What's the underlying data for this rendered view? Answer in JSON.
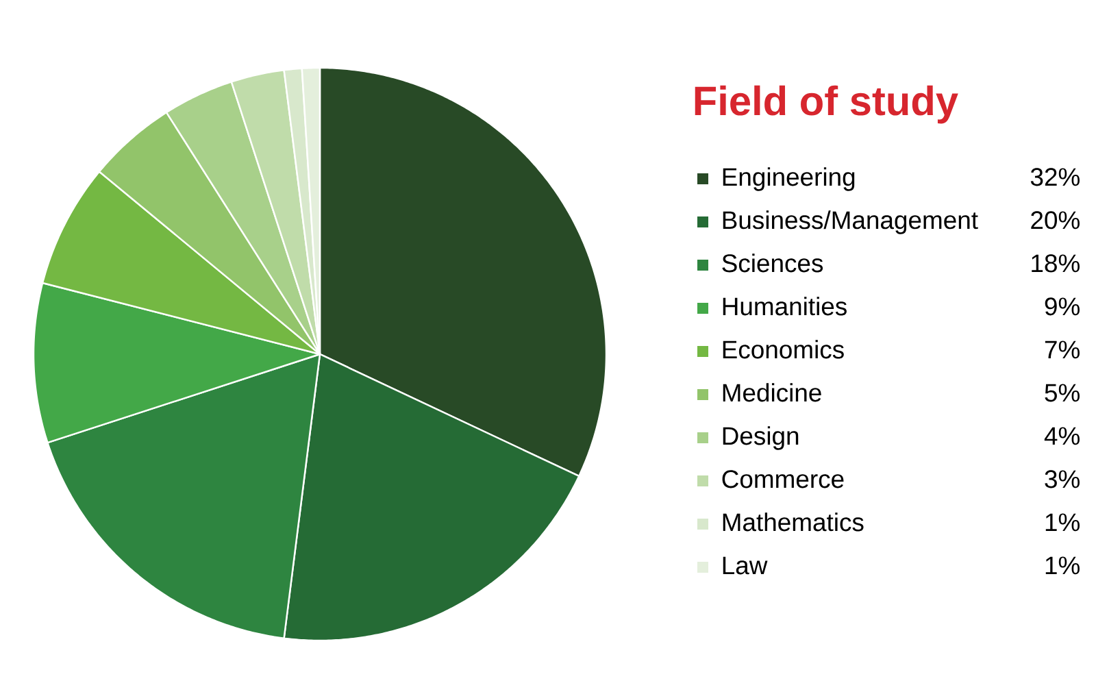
{
  "chart_data": {
    "type": "pie",
    "title": "Field of study",
    "categories": [
      "Engineering",
      "Business/Management",
      "Sciences",
      "Humanities",
      "Economics",
      "Medicine",
      "Design",
      "Commerce",
      "Mathematics",
      "Law"
    ],
    "values": [
      32,
      20,
      18,
      9,
      7,
      5,
      4,
      3,
      1,
      1
    ],
    "colors": [
      "#284a26",
      "#256b35",
      "#2e8540",
      "#43a848",
      "#74b843",
      "#92c46a",
      "#a8d08a",
      "#c0dcaa",
      "#d8e8cc",
      "#e4efdc"
    ],
    "value_labels": [
      "32%",
      "20%",
      "18%",
      "9%",
      "7%",
      "5%",
      "4%",
      "3%",
      "1%",
      "1%"
    ],
    "legend": "right"
  }
}
